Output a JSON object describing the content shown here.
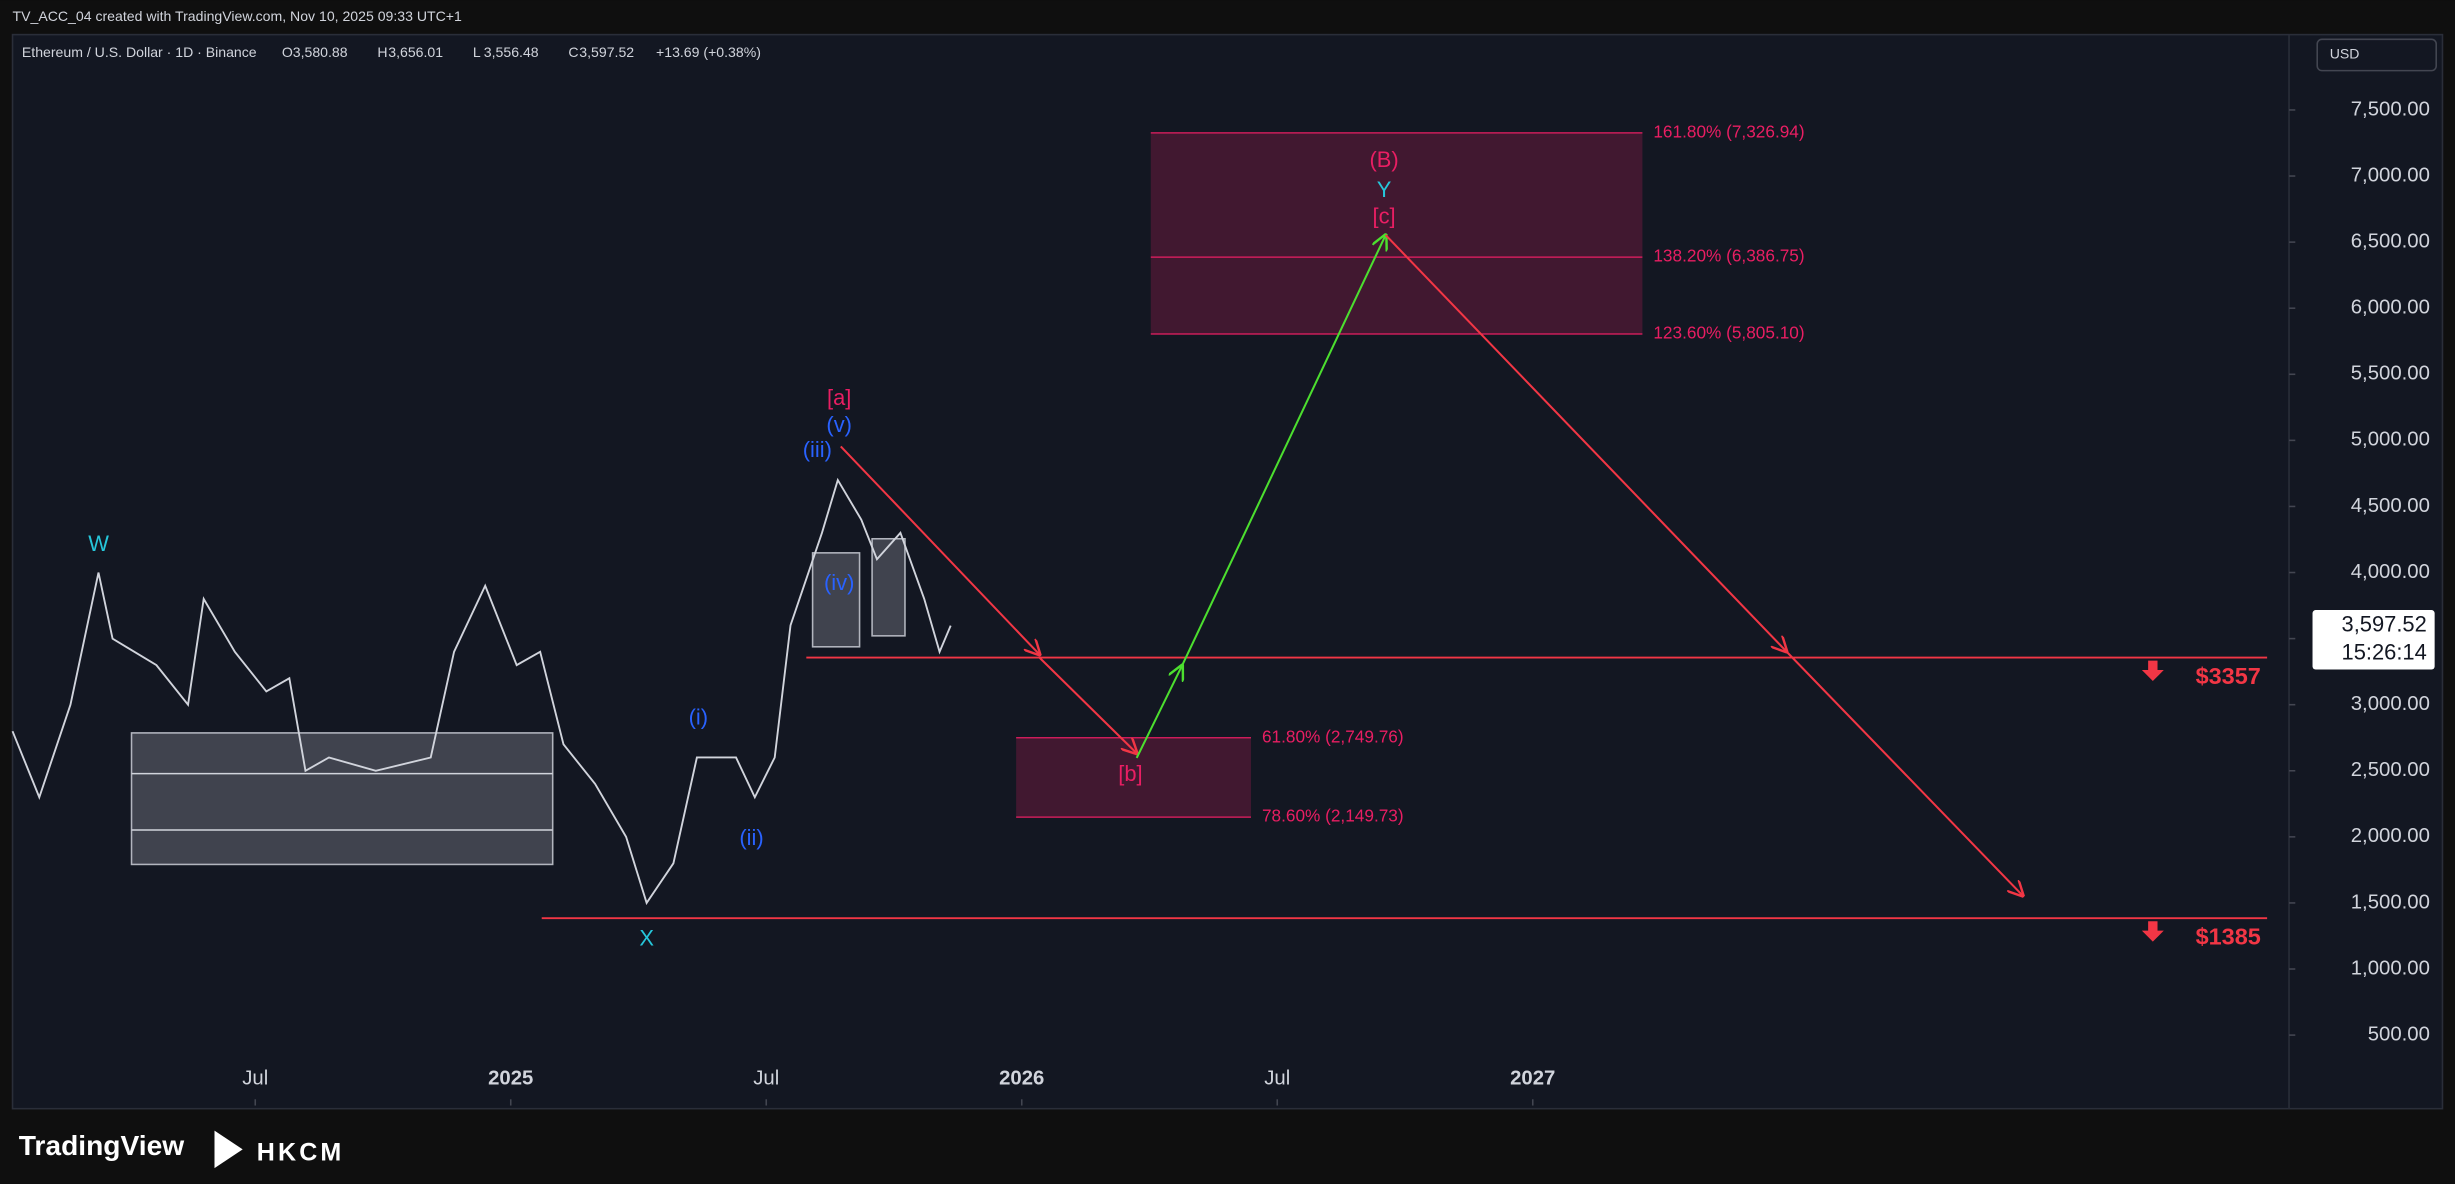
{
  "header": {
    "created": "TV_ACC_04 created with TradingView.com, Nov 10, 2025 09:33 UTC+1"
  },
  "chart_data": {
    "type": "line",
    "symbol": "Ethereum / U.S. Dollar · 1D · Binance",
    "ohlc_keys": [
      "O",
      "H",
      "L",
      "C"
    ],
    "ohlc_values": [
      "3,580.88",
      "3,656.01",
      "3,556.48",
      "3,597.52"
    ],
    "change": "+13.69 (+0.38%)",
    "currency": "USD",
    "x": [
      0.3,
      0.93,
      1.66,
      2.32,
      2.65,
      3.68,
      4.42,
      4.79,
      5.52,
      6.26,
      6.8,
      7.18,
      7.73,
      8.83,
      10.12,
      10.67,
      11.4,
      12.14,
      12.69,
      13.24,
      13.98,
      14.71,
      15.19,
      15.82,
      16.37,
      17.29,
      17.73,
      18.2,
      18.57,
      19.31,
      19.68,
      20.23,
      20.6,
      21.15,
      21.71,
      22.07,
      22.33
    ],
    "values": [
      2800,
      2300,
      3000,
      4000,
      3500,
      3300,
      3000,
      3800,
      3400,
      3100,
      3200,
      2500,
      2600,
      2500,
      2600,
      3400,
      3900,
      3300,
      3400,
      2700,
      2400,
      2000,
      1500,
      1800,
      2600,
      2600,
      2300,
      2600,
      3600,
      4300,
      4700,
      4400,
      4100,
      4300,
      3800,
      3400,
      3597.52
    ],
    "color": "#d1d4dc",
    "xlim": [
      0.3,
      53.76
    ],
    "xticks": [
      {
        "value": 6,
        "label": "Jul"
      },
      {
        "value": 12,
        "label": "2025"
      },
      {
        "value": 18,
        "label": "Jul"
      },
      {
        "value": 24,
        "label": "2026"
      },
      {
        "value": 30,
        "label": "Jul"
      },
      {
        "value": 36,
        "label": "2027"
      }
    ],
    "ylim": [
      -33,
      8070
    ],
    "yticks": [
      {
        "value": 500,
        "label": "500.00"
      },
      {
        "value": 1000,
        "label": "1,000.00"
      },
      {
        "value": 1500,
        "label": "1,500.00"
      },
      {
        "value": 2000,
        "label": "2,000.00"
      },
      {
        "value": 2500,
        "label": "2,500.00"
      },
      {
        "value": 3000,
        "label": "3,000.00"
      },
      {
        "value": 3500,
        "label": "3,500.00"
      },
      {
        "value": 4000,
        "label": "4,000.00"
      },
      {
        "value": 4500,
        "label": "4,500.00"
      },
      {
        "value": 5000,
        "label": "5,000.00"
      },
      {
        "value": 5500,
        "label": "5,500.00"
      },
      {
        "value": 6000,
        "label": "6,000.00"
      },
      {
        "value": 6500,
        "label": "6,500.00"
      },
      {
        "value": 7000,
        "label": "7,000.00"
      },
      {
        "value": 7500,
        "label": "7,500.00"
      }
    ],
    "last_price": {
      "value": 3597.52,
      "label": "3,597.52"
    },
    "countdown": "15:26:14",
    "levels": [
      {
        "value": 3357,
        "label": "$3357"
      },
      {
        "value": 1385,
        "label": "$1385"
      }
    ],
    "fib_levels": [
      {
        "value": 7326.94,
        "label": "161.80% (7,326.94)"
      },
      {
        "value": 6386.75,
        "label": "138.20% (6,386.75)"
      },
      {
        "value": 5805.1,
        "label": "123.60% (5,805.10)"
      },
      {
        "value": 2749.76,
        "label": "61.80% (2,749.76)"
      },
      {
        "value": 2149.73,
        "label": "78.60% (2,149.73)"
      }
    ],
    "wave_labels": [
      "W",
      "X",
      "[a]",
      "(v)",
      "(iii)",
      "(iv)",
      "(i)",
      "(ii)",
      "(B)",
      "Y",
      "[c]",
      "[b]"
    ]
  },
  "footer": {
    "brand": "TradingView",
    "partner": "HKCM"
  }
}
